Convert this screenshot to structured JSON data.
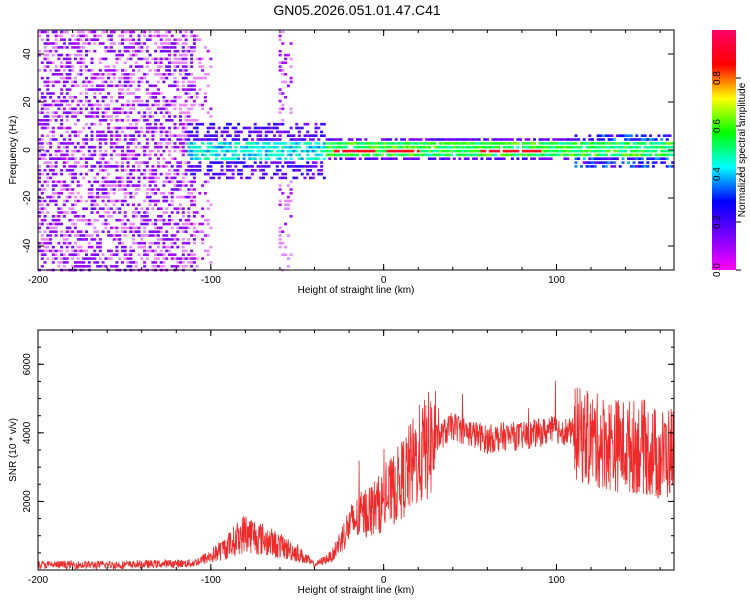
{
  "title": "GN05.2026.051.01.47.C41",
  "chart_data": [
    {
      "type": "heatmap",
      "xlabel": "Height of straight line (km)",
      "ylabel": "Frequency (Hz)",
      "xlim": [
        -200,
        168
      ],
      "ylim": [
        -50,
        50
      ],
      "xticks": [
        "-200",
        "-100",
        "0",
        "100"
      ],
      "yticks": [
        "-40",
        "-20",
        "0",
        "20",
        "40"
      ],
      "colorbar": {
        "label": "Normalized spectral amplitude",
        "range": [
          0,
          1
        ],
        "ticks": [
          "0.0",
          "0.2",
          "0.4",
          "0.6",
          "0.8"
        ],
        "colormap": [
          "#ff00ff",
          "#7700ff",
          "#0000ff",
          "#00ffff",
          "#00ff00",
          "#ffff00",
          "#ff0000",
          "#ff0066"
        ]
      },
      "grid": false
    },
    {
      "type": "line",
      "xlabel": "Height of straight line (km)",
      "ylabel": "SNR (10 * v/v)",
      "xlim": [
        -200,
        168
      ],
      "ylim": [
        0,
        7000
      ],
      "xticks": [
        "-200",
        "-100",
        "0",
        "100"
      ],
      "yticks": [
        "2000",
        "4000",
        "6000"
      ],
      "series": [
        {
          "color": "#ee2a2a",
          "x": [
            -200,
            -150,
            -110,
            -100,
            -90,
            -80,
            -70,
            -60,
            -50,
            -40,
            -30,
            -20,
            -10,
            0,
            10,
            20,
            30,
            40,
            50,
            60,
            70,
            80,
            90,
            100,
            110,
            120,
            130,
            140,
            150,
            160,
            168
          ],
          "y": [
            150,
            150,
            200,
            400,
            700,
            1100,
            900,
            700,
            500,
            150,
            400,
            1300,
            1700,
            2000,
            2600,
            3300,
            3800,
            4200,
            4000,
            3800,
            3900,
            3900,
            4000,
            4100,
            4000,
            3800,
            3700,
            3600,
            3600,
            3300,
            3500
          ]
        }
      ]
    }
  ]
}
